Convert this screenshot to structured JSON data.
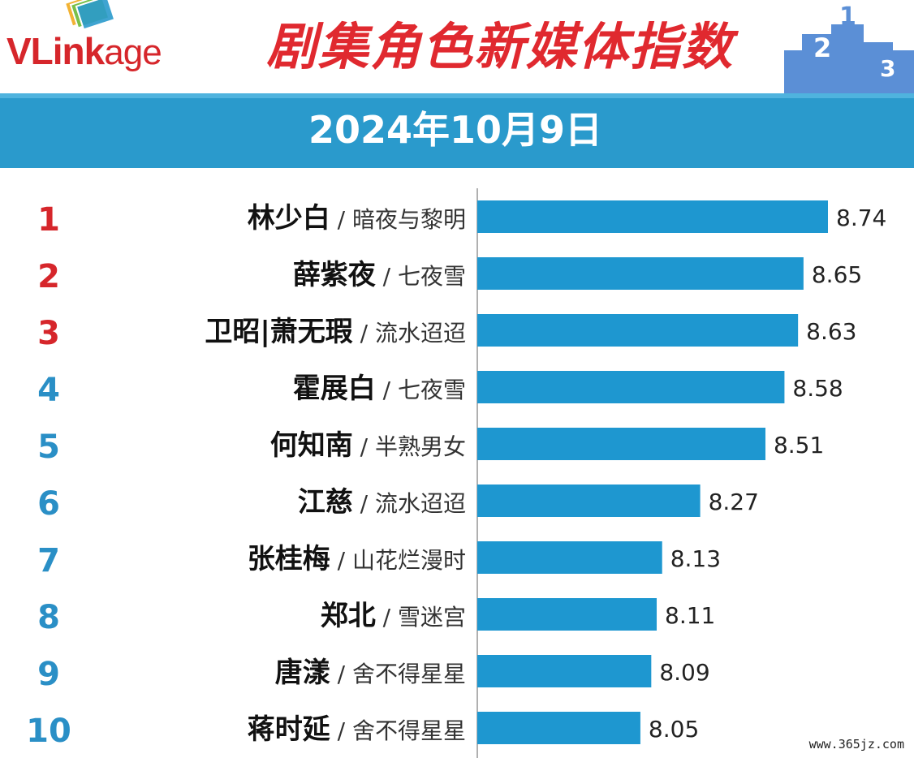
{
  "logo": {
    "part1": "VLink",
    "part2": "age"
  },
  "title": "剧集角色新媒体指数",
  "date": "2024年10月9日",
  "podium_digits": [
    "2",
    "1",
    "3"
  ],
  "watermark": "www.365jz.com",
  "colors": {
    "bar": "#1e97d0",
    "band": "#2a9acc",
    "title": "#e0292f",
    "rank_top": "#d6262b",
    "rank_other": "#2a8fc6",
    "axis": "#b0b0b0"
  },
  "chart_data": {
    "type": "bar",
    "orientation": "horizontal",
    "categories": [
      {
        "rank": "1",
        "character": "林少白",
        "drama": "暗夜与黎明"
      },
      {
        "rank": "2",
        "character": "薛紫夜",
        "drama": "七夜雪"
      },
      {
        "rank": "3",
        "character": "卫昭|萧无瑕",
        "drama": "流水迢迢"
      },
      {
        "rank": "4",
        "character": "霍展白",
        "drama": "七夜雪"
      },
      {
        "rank": "5",
        "character": "何知南",
        "drama": "半熟男女"
      },
      {
        "rank": "6",
        "character": "江慈",
        "drama": "流水迢迢"
      },
      {
        "rank": "7",
        "character": "张桂梅",
        "drama": "山花烂漫时"
      },
      {
        "rank": "8",
        "character": "郑北",
        "drama": "雪迷宫"
      },
      {
        "rank": "9",
        "character": "唐漾",
        "drama": "舍不得星星"
      },
      {
        "rank": "10",
        "character": "蒋时延",
        "drama": "舍不得星星"
      }
    ],
    "values": [
      8.74,
      8.65,
      8.63,
      8.58,
      8.51,
      8.27,
      8.13,
      8.11,
      8.09,
      8.05
    ],
    "value_labels": [
      "8.74",
      "8.65",
      "8.63",
      "8.58",
      "8.51",
      "8.27",
      "8.13",
      "8.11",
      "8.09",
      "8.05"
    ],
    "separator": " / ",
    "xlim": [
      7.45,
      8.74
    ],
    "grid": false,
    "legend": "none"
  }
}
